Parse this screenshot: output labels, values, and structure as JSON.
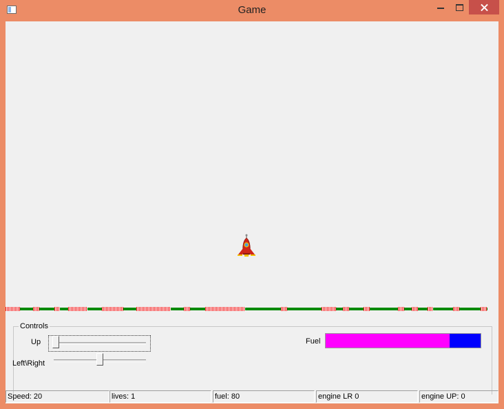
{
  "window": {
    "title": "Game",
    "icons": {
      "app": "window-app-icon",
      "minimize": "minimize-icon",
      "maximize": "maximize-icon",
      "close": "close-icon"
    }
  },
  "game": {
    "ship_icon": "rocket-ship-icon"
  },
  "controls": {
    "legend": "Controls",
    "up_label": "Up",
    "leftright_label": "Left\\Right",
    "up_value": 0,
    "leftright_value": 0.5
  },
  "fuel": {
    "label": "Fuel",
    "value": 80,
    "max": 100,
    "fill_color": "#FF00FF",
    "empty_color": "#0000FF"
  },
  "status": {
    "speed": "Speed: 20",
    "lives": "lives: 1",
    "fuel": "fuel: 80",
    "engine_lr": "engine LR 0",
    "engine_up": "engine UP: 0"
  }
}
